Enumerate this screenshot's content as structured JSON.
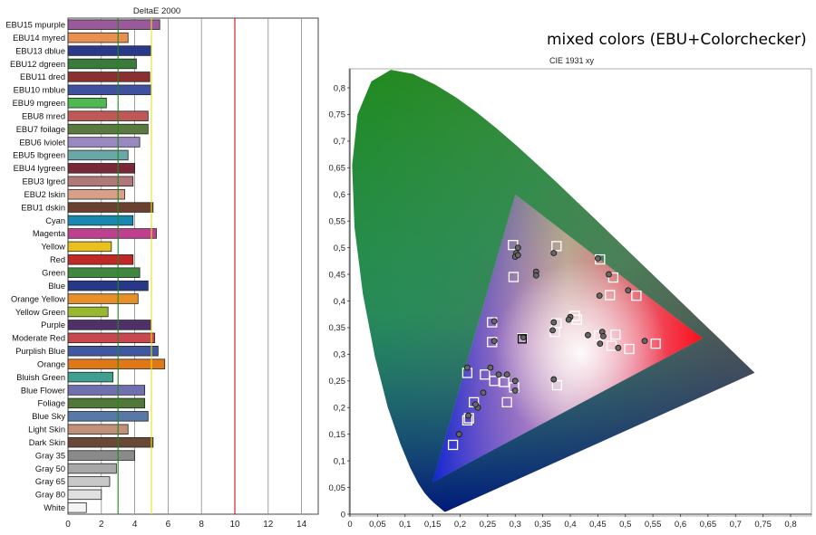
{
  "deltae_chart": {
    "type": "bar",
    "title": "DeltaE 2000",
    "xlim": [
      0,
      15
    ],
    "x_ticks": [
      "0",
      "2",
      "4",
      "6",
      "8",
      "10",
      "12",
      "14"
    ],
    "reference_lines": [
      {
        "value": 3,
        "color": "#1a8a1a"
      },
      {
        "value": 5,
        "color": "#e8e020"
      },
      {
        "value": 10,
        "color": "#cc1111"
      }
    ],
    "categories": [
      "EBU15 mpurple",
      "EBU14 myred",
      "EBU13 dblue",
      "EBU12 dgreen",
      "EBU11 dred",
      "EBU10 mblue",
      "EBU9 mgreen",
      "EBU8 mred",
      "EBU7 foilage",
      "EBU6 lviolet",
      "EBU5 lbgreen",
      "EBU4 lygreen",
      "EBU3 lgred",
      "EBU2 lskin",
      "EBU1 dskin",
      "Cyan",
      "Magenta",
      "Yellow",
      "Red",
      "Green",
      "Blue",
      "Orange Yellow",
      "Yellow Green",
      "Purple",
      "Moderate Red",
      "Purplish Blue",
      "Orange",
      "Bluish Green",
      "Blue Flower",
      "Foliage",
      "Blue Sky",
      "Light Skin",
      "Dark Skin",
      "Gray 35",
      "Gray 50",
      "Gray 65",
      "Gray 80",
      "White"
    ],
    "values": [
      5.5,
      3.6,
      5.0,
      4.1,
      4.9,
      5.0,
      2.3,
      4.8,
      4.8,
      4.3,
      3.6,
      4.0,
      3.9,
      3.4,
      5.1,
      3.9,
      5.3,
      2.6,
      3.9,
      4.3,
      4.8,
      4.2,
      2.4,
      5.0,
      5.2,
      5.4,
      5.8,
      2.7,
      4.6,
      4.6,
      4.8,
      3.6,
      5.1,
      4.0,
      2.9,
      2.5,
      2.0,
      1.1
    ],
    "colors": [
      "#9a5a9a",
      "#e89050",
      "#2a3a8a",
      "#3a7a3a",
      "#8a3030",
      "#4050a0",
      "#50b850",
      "#c05858",
      "#5a7a40",
      "#9a88c0",
      "#6aa8a8",
      "#7a2838",
      "#b07878",
      "#d8a088",
      "#6a4030",
      "#1888b0",
      "#c04090",
      "#e8c020",
      "#c02828",
      "#408840",
      "#283888",
      "#e89028",
      "#98b830",
      "#503068",
      "#c84850",
      "#4058a0",
      "#e07818",
      "#40a090",
      "#7070b0",
      "#507838",
      "#5878a8",
      "#c09078",
      "#6a4838",
      "#8a8a8a",
      "#a8a8a8",
      "#c8c8c8",
      "#e0e0e0",
      "#f4f4f4"
    ]
  },
  "cie_chart": {
    "type": "scatter",
    "title": "mixed colors (EBU+Colorchecker)",
    "subtitle": "CIE 1931 xy",
    "xlim": [
      0,
      0.85
    ],
    "ylim": [
      0,
      0.85
    ],
    "x_ticks": [
      "0",
      "0,05",
      "0,1",
      "0,15",
      "0,2",
      "0,25",
      "0,3",
      "0,35",
      "0,4",
      "0,45",
      "0,5",
      "0,55",
      "0,6",
      "0,65",
      "0,7",
      "0,75",
      "0,8"
    ],
    "y_ticks": [
      "0",
      "0,05",
      "0,1",
      "0,15",
      "0,2",
      "0,25",
      "0,3",
      "0,35",
      "0,4",
      "0,45",
      "0,5",
      "0,55",
      "0,6",
      "0,65",
      "0,7",
      "0,75",
      "0,8"
    ],
    "gamut_triangle": [
      [
        0.64,
        0.33
      ],
      [
        0.3,
        0.6
      ],
      [
        0.15,
        0.06
      ]
    ],
    "white_point": [
      0.3127,
      0.329
    ],
    "targets": [
      [
        0.296,
        0.505
      ],
      [
        0.375,
        0.503
      ],
      [
        0.297,
        0.445
      ],
      [
        0.454,
        0.478
      ],
      [
        0.478,
        0.444
      ],
      [
        0.472,
        0.411
      ],
      [
        0.52,
        0.41
      ],
      [
        0.258,
        0.36
      ],
      [
        0.375,
        0.358
      ],
      [
        0.408,
        0.372
      ],
      [
        0.412,
        0.365
      ],
      [
        0.372,
        0.342
      ],
      [
        0.452,
        0.335
      ],
      [
        0.482,
        0.337
      ],
      [
        0.258,
        0.323
      ],
      [
        0.475,
        0.316
      ],
      [
        0.507,
        0.31
      ],
      [
        0.555,
        0.32
      ],
      [
        0.213,
        0.265
      ],
      [
        0.245,
        0.262
      ],
      [
        0.262,
        0.25
      ],
      [
        0.28,
        0.248
      ],
      [
        0.298,
        0.238
      ],
      [
        0.376,
        0.242
      ],
      [
        0.285,
        0.21
      ],
      [
        0.225,
        0.21
      ],
      [
        0.216,
        0.18
      ],
      [
        0.213,
        0.176
      ],
      [
        0.187,
        0.13
      ],
      [
        0.313,
        0.33
      ]
    ],
    "measured": [
      [
        0.305,
        0.5
      ],
      [
        0.302,
        0.49
      ],
      [
        0.3,
        0.483
      ],
      [
        0.305,
        0.486
      ],
      [
        0.37,
        0.49
      ],
      [
        0.338,
        0.455
      ],
      [
        0.338,
        0.448
      ],
      [
        0.45,
        0.48
      ],
      [
        0.47,
        0.45
      ],
      [
        0.505,
        0.42
      ],
      [
        0.453,
        0.41
      ],
      [
        0.4,
        0.37
      ],
      [
        0.397,
        0.365
      ],
      [
        0.37,
        0.36
      ],
      [
        0.368,
        0.345
      ],
      [
        0.432,
        0.336
      ],
      [
        0.458,
        0.342
      ],
      [
        0.46,
        0.334
      ],
      [
        0.454,
        0.32
      ],
      [
        0.487,
        0.312
      ],
      [
        0.535,
        0.325
      ],
      [
        0.262,
        0.362
      ],
      [
        0.262,
        0.325
      ],
      [
        0.315,
        0.332
      ],
      [
        0.213,
        0.275
      ],
      [
        0.255,
        0.275
      ],
      [
        0.27,
        0.262
      ],
      [
        0.285,
        0.262
      ],
      [
        0.242,
        0.228
      ],
      [
        0.232,
        0.2
      ],
      [
        0.228,
        0.206
      ],
      [
        0.3,
        0.25
      ],
      [
        0.3,
        0.232
      ],
      [
        0.37,
        0.253
      ],
      [
        0.215,
        0.185
      ],
      [
        0.198,
        0.15
      ]
    ]
  }
}
